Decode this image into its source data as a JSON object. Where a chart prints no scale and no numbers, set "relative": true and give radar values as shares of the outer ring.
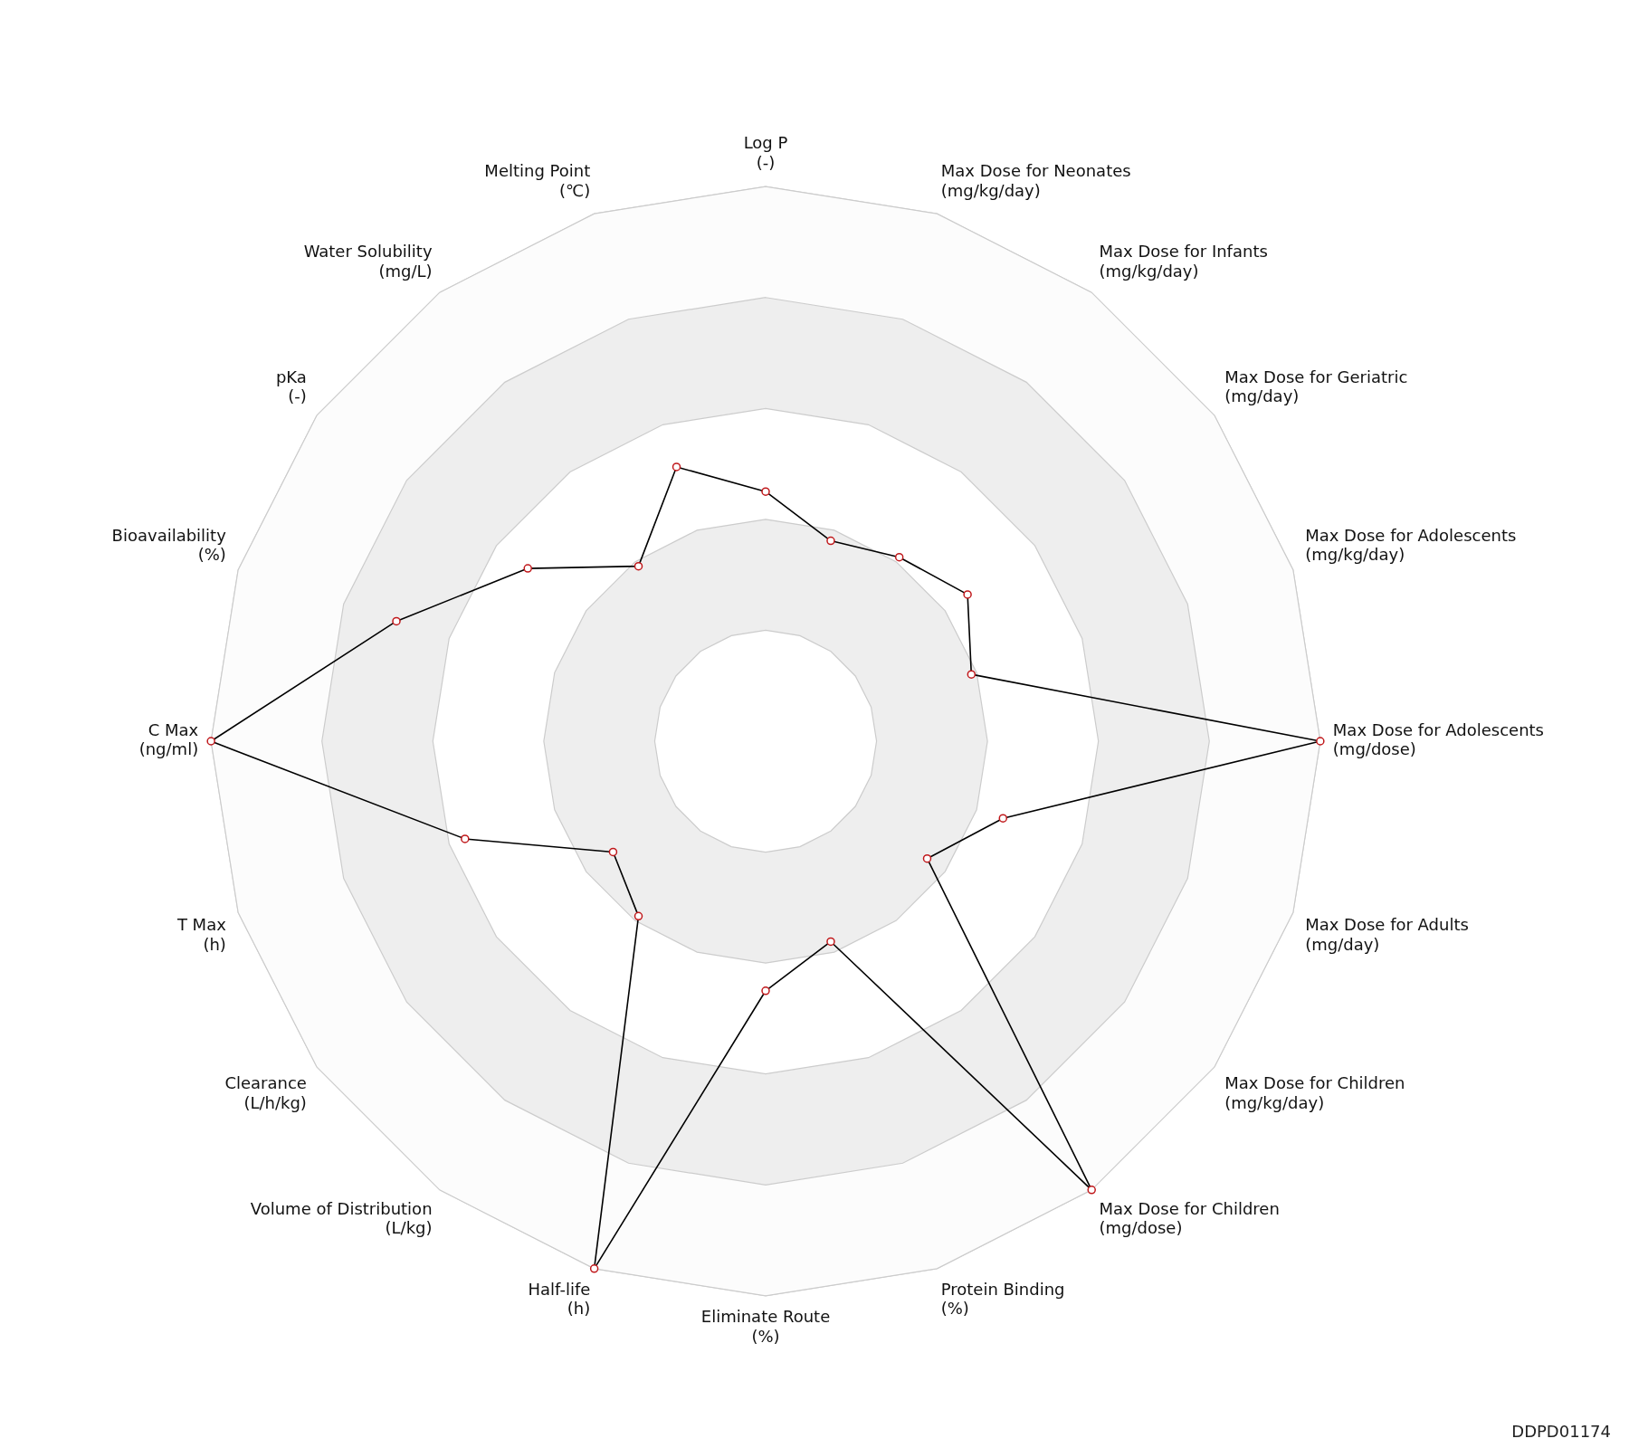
{
  "chart_data": {
    "type": "radar",
    "relative": true,
    "categories": [
      "Log P\n(-)",
      "Max Dose for Neonates\n(mg/kg/day)",
      "Max Dose for Infants\n(mg/kg/day)",
      "Max Dose for Geriatric\n(mg/day)",
      "Max Dose for Adolescents\n(mg/kg/day)",
      "Max Dose for Adolescents\n(mg/dose)",
      "Max Dose for Adults\n(mg/day)",
      "Max Dose for Children\n(mg/kg/day)",
      "Max Dose for Children\n(mg/dose)",
      "Protein Binding\n(%)",
      "Eliminate Route\n(%)",
      "Half-life\n(h)",
      "Volume of Distribution\n(L/kg)",
      "Clearance\n(L/h/kg)",
      "T Max\n(h)",
      "C Max\n(ng/ml)",
      "Bioavailability\n(%)",
      "pKa\n(-)",
      "Water Solubility\n(mg/L)",
      "Melting Point\n(℃)"
    ],
    "series": [
      {
        "color": "#000000",
        "values": [
          0.45,
          0.38,
          0.41,
          0.45,
          0.39,
          1,
          0.45,
          0.36,
          1,
          0.38,
          0.45,
          1,
          0.39,
          0.34,
          0.57,
          1,
          0.7,
          0.53,
          0.39,
          0.52
        ]
      }
    ],
    "marker": "circle",
    "line_style": "solid",
    "grid": true,
    "legend": false,
    "annotations": [
      "DDPD01174"
    ]
  }
}
